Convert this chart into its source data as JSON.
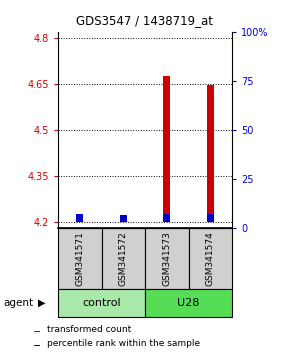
{
  "title": "GDS3547 / 1438719_at",
  "samples": [
    "GSM341571",
    "GSM341572",
    "GSM341573",
    "GSM341574"
  ],
  "red_values": [
    4.218,
    4.208,
    4.675,
    4.648
  ],
  "blue_values": [
    4.228,
    4.222,
    4.228,
    4.228
  ],
  "bar_bottom": 4.2,
  "bar_width": 0.15,
  "ylim_left": [
    4.18,
    4.82
  ],
  "ylim_right": [
    0,
    100
  ],
  "yticks_left": [
    4.2,
    4.35,
    4.5,
    4.65,
    4.8
  ],
  "yticks_right": [
    0,
    25,
    50,
    75,
    100
  ],
  "ytick_labels_left": [
    "4.2",
    "4.35",
    "4.5",
    "4.65",
    "4.8"
  ],
  "ytick_labels_right": [
    "0",
    "25",
    "50",
    "75",
    "100%"
  ],
  "red_color": "#cc0000",
  "blue_color": "#0000cc",
  "left_tick_color": "#cc0000",
  "right_tick_color": "#0000cc",
  "agent_label": "agent",
  "legend_red": "transformed count",
  "legend_blue": "percentile rank within the sample",
  "group_control_color": "#aae8aa",
  "group_u28_color": "#55dd55",
  "sample_box_color": "#d0d0d0"
}
